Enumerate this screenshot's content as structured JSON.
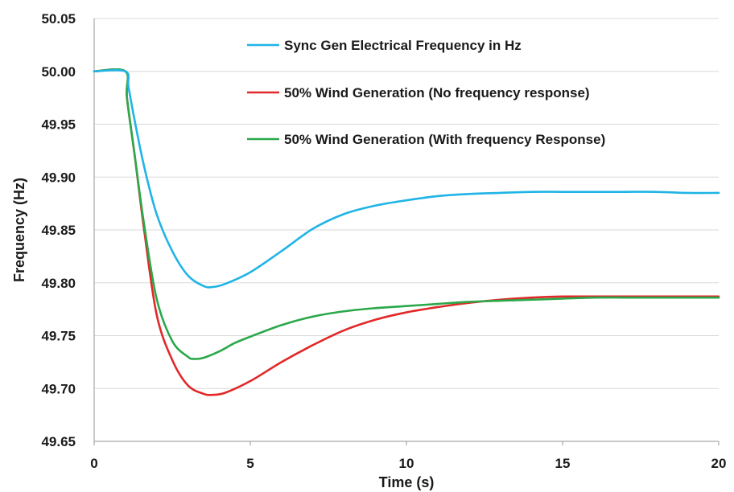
{
  "chart_data": {
    "type": "line",
    "title": "",
    "xlabel": "Time (s)",
    "ylabel": "Frequency (Hz)",
    "xlim": [
      0,
      20
    ],
    "ylim": [
      49.65,
      50.05
    ],
    "xticks": [
      0,
      5,
      10,
      15,
      20
    ],
    "xtick_labels": [
      "0",
      "5",
      "10",
      "15",
      "20"
    ],
    "yticks": [
      49.65,
      49.7,
      49.75,
      49.8,
      49.85,
      49.9,
      49.95,
      50.0,
      50.05
    ],
    "ytick_labels": [
      "49.65",
      "49.70",
      "49.75",
      "49.80",
      "49.85",
      "49.90",
      "49.95",
      "50.00",
      "50.05"
    ],
    "grid": "horizontal",
    "legend_position": "top-right",
    "series": [
      {
        "name": "Sync Gen Electrical Frequency in Hz",
        "color": "#1fb4e6",
        "x": [
          0,
          1.0,
          1.1,
          1.3,
          1.6,
          2.0,
          2.5,
          3.0,
          3.5,
          3.8,
          4.2,
          5.0,
          6.0,
          7.0,
          8.0,
          9.0,
          10.0,
          11.0,
          12.0,
          13.0,
          14.0,
          15.0,
          16.0,
          17.0,
          18.0,
          19.0,
          20.0
        ],
        "y": [
          50.0,
          50.0,
          49.985,
          49.953,
          49.91,
          49.865,
          49.83,
          49.807,
          49.797,
          49.796,
          49.799,
          49.81,
          49.83,
          49.851,
          49.865,
          49.873,
          49.878,
          49.882,
          49.884,
          49.885,
          49.886,
          49.886,
          49.886,
          49.886,
          49.886,
          49.885,
          49.885
        ]
      },
      {
        "name": "50% Wind Generation (No frequency response)",
        "color": "#e22828",
        "x": [
          0,
          1.0,
          1.05,
          1.3,
          1.6,
          2.0,
          2.5,
          3.0,
          3.5,
          3.8,
          4.2,
          5.0,
          6.0,
          7.0,
          8.0,
          9.0,
          10.0,
          11.0,
          12.0,
          13.0,
          14.0,
          15.0,
          16.0,
          17.0,
          18.0,
          19.0,
          20.0
        ],
        "y": [
          50.0,
          50.0,
          49.975,
          49.92,
          49.85,
          49.77,
          49.727,
          49.703,
          49.695,
          49.694,
          49.696,
          49.707,
          49.725,
          49.741,
          49.755,
          49.765,
          49.772,
          49.777,
          49.781,
          49.784,
          49.786,
          49.787,
          49.787,
          49.787,
          49.787,
          49.787,
          49.787
        ]
      },
      {
        "name": "50% Wind Generation (With frequency Response)",
        "color": "#2aa84a",
        "x": [
          0,
          1.0,
          1.05,
          1.3,
          1.6,
          2.0,
          2.5,
          3.0,
          3.2,
          3.5,
          4.0,
          4.5,
          5.0,
          6.0,
          7.0,
          8.0,
          9.0,
          10.0,
          11.0,
          12.0,
          13.0,
          14.0,
          15.0,
          16.0,
          17.0,
          18.0,
          19.0,
          20.0
        ],
        "y": [
          50.0,
          50.0,
          49.975,
          49.92,
          49.855,
          49.785,
          49.745,
          49.73,
          49.728,
          49.729,
          49.735,
          49.743,
          49.749,
          49.76,
          49.768,
          49.773,
          49.776,
          49.778,
          49.78,
          49.782,
          49.783,
          49.784,
          49.785,
          49.786,
          49.786,
          49.786,
          49.786,
          49.786
        ]
      }
    ]
  }
}
